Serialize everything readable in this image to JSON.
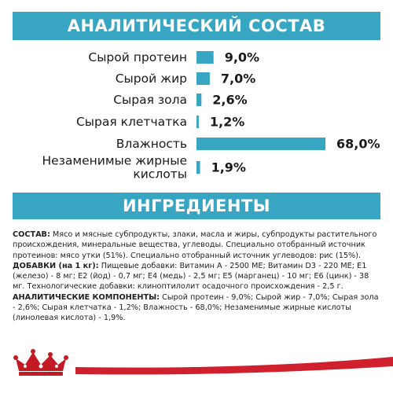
{
  "header": {
    "title": "АНАЛИТИЧЕСКИЙ СОСТАВ"
  },
  "section2": {
    "title": "ИНГРЕДИЕНТЫ"
  },
  "colors": {
    "accent": "#38a6c3",
    "brand_red": "#d0202e",
    "logo_red": "#c41a23"
  },
  "chart_data": {
    "type": "bar",
    "orientation": "horizontal",
    "categories": [
      [
        "Сырой протеин"
      ],
      [
        "Сырой жир"
      ],
      [
        "Сырая зола"
      ],
      [
        "Сырая клетчатка"
      ],
      [
        "Влажность"
      ],
      [
        "Незаменимые жирные",
        "кислоты"
      ]
    ],
    "values": [
      9.0,
      7.0,
      2.6,
      1.2,
      68.0,
      1.9
    ],
    "value_labels": [
      "9,0%",
      "7,0%",
      "2,6%",
      "1,2%",
      "68,0%",
      "1,9%"
    ],
    "unit": "%",
    "xlim": [
      0,
      68.0
    ],
    "grid": false,
    "legend": "none",
    "bar_color": "#38a6c3"
  },
  "ingredients": {
    "composition_label": "СОСТАВ:",
    "composition_text": " Мясо и мясные субпродукты, злаки, масла и жиры, субпродукты растительного происхождения, минеральные вещества, углеводы. Специально отобранный источник протеинов: мясо утки (51%). Специально отобранный источник углеводов: рис (15%).",
    "additives_label": "ДОБАВКИ (на 1 кг):",
    "additives_text": " Пищевые добавки: Витамин A - 2500 МЕ; Витамин D3 - 220 МЕ; E1 (железо) - 8 мг; E2 (йод) - 0,7 мг; E4 (медь) - 2,5 мг; E5 (марганец) - 10 мг; E6 (цинк) - 38 мг. Технологические добавки: клиноптилолит осадочного происхождения - 2,5 г.",
    "analytic_label": "АНАЛИТИЧЕСКИЕ КОМПОНЕНТЫ:",
    "analytic_text": " Сырой протеин - 9,0%; Сырой жир - 7,0%; Сырая зола - 2,6%; Сырая клетчатка - 1,2%; Влажность - 68,0%; Незаменимые жирные кислоты (линолевая кислота) - 1,9%."
  },
  "footer": {
    "logo_icon": "crown-icon"
  }
}
